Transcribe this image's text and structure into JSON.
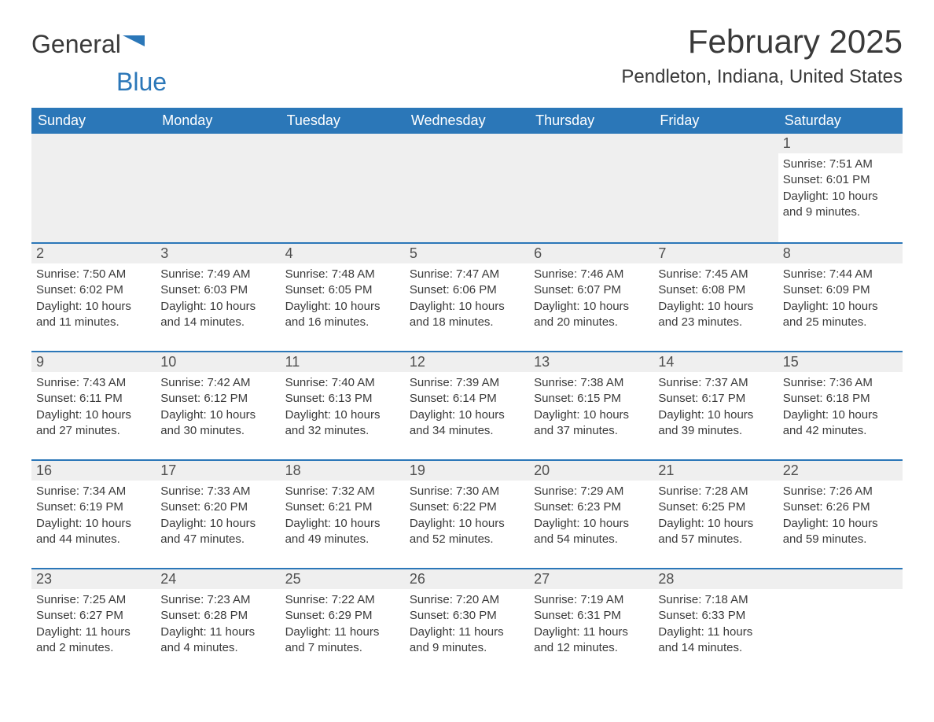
{
  "logo": {
    "text1": "General",
    "text2": "Blue"
  },
  "title": "February 2025",
  "location": "Pendleton, Indiana, United States",
  "colors": {
    "header_bg": "#2b77b8",
    "header_text": "#ffffff",
    "row_border": "#2b77b8",
    "daynum_bg": "#efefef",
    "body_text": "#3a3a3a"
  },
  "weekdays": [
    "Sunday",
    "Monday",
    "Tuesday",
    "Wednesday",
    "Thursday",
    "Friday",
    "Saturday"
  ],
  "weeks": [
    [
      null,
      null,
      null,
      null,
      null,
      null,
      {
        "n": "1",
        "sr": "Sunrise: 7:51 AM",
        "ss": "Sunset: 6:01 PM",
        "dl": "Daylight: 10 hours and 9 minutes."
      }
    ],
    [
      {
        "n": "2",
        "sr": "Sunrise: 7:50 AM",
        "ss": "Sunset: 6:02 PM",
        "dl": "Daylight: 10 hours and 11 minutes."
      },
      {
        "n": "3",
        "sr": "Sunrise: 7:49 AM",
        "ss": "Sunset: 6:03 PM",
        "dl": "Daylight: 10 hours and 14 minutes."
      },
      {
        "n": "4",
        "sr": "Sunrise: 7:48 AM",
        "ss": "Sunset: 6:05 PM",
        "dl": "Daylight: 10 hours and 16 minutes."
      },
      {
        "n": "5",
        "sr": "Sunrise: 7:47 AM",
        "ss": "Sunset: 6:06 PM",
        "dl": "Daylight: 10 hours and 18 minutes."
      },
      {
        "n": "6",
        "sr": "Sunrise: 7:46 AM",
        "ss": "Sunset: 6:07 PM",
        "dl": "Daylight: 10 hours and 20 minutes."
      },
      {
        "n": "7",
        "sr": "Sunrise: 7:45 AM",
        "ss": "Sunset: 6:08 PM",
        "dl": "Daylight: 10 hours and 23 minutes."
      },
      {
        "n": "8",
        "sr": "Sunrise: 7:44 AM",
        "ss": "Sunset: 6:09 PM",
        "dl": "Daylight: 10 hours and 25 minutes."
      }
    ],
    [
      {
        "n": "9",
        "sr": "Sunrise: 7:43 AM",
        "ss": "Sunset: 6:11 PM",
        "dl": "Daylight: 10 hours and 27 minutes."
      },
      {
        "n": "10",
        "sr": "Sunrise: 7:42 AM",
        "ss": "Sunset: 6:12 PM",
        "dl": "Daylight: 10 hours and 30 minutes."
      },
      {
        "n": "11",
        "sr": "Sunrise: 7:40 AM",
        "ss": "Sunset: 6:13 PM",
        "dl": "Daylight: 10 hours and 32 minutes."
      },
      {
        "n": "12",
        "sr": "Sunrise: 7:39 AM",
        "ss": "Sunset: 6:14 PM",
        "dl": "Daylight: 10 hours and 34 minutes."
      },
      {
        "n": "13",
        "sr": "Sunrise: 7:38 AM",
        "ss": "Sunset: 6:15 PM",
        "dl": "Daylight: 10 hours and 37 minutes."
      },
      {
        "n": "14",
        "sr": "Sunrise: 7:37 AM",
        "ss": "Sunset: 6:17 PM",
        "dl": "Daylight: 10 hours and 39 minutes."
      },
      {
        "n": "15",
        "sr": "Sunrise: 7:36 AM",
        "ss": "Sunset: 6:18 PM",
        "dl": "Daylight: 10 hours and 42 minutes."
      }
    ],
    [
      {
        "n": "16",
        "sr": "Sunrise: 7:34 AM",
        "ss": "Sunset: 6:19 PM",
        "dl": "Daylight: 10 hours and 44 minutes."
      },
      {
        "n": "17",
        "sr": "Sunrise: 7:33 AM",
        "ss": "Sunset: 6:20 PM",
        "dl": "Daylight: 10 hours and 47 minutes."
      },
      {
        "n": "18",
        "sr": "Sunrise: 7:32 AM",
        "ss": "Sunset: 6:21 PM",
        "dl": "Daylight: 10 hours and 49 minutes."
      },
      {
        "n": "19",
        "sr": "Sunrise: 7:30 AM",
        "ss": "Sunset: 6:22 PM",
        "dl": "Daylight: 10 hours and 52 minutes."
      },
      {
        "n": "20",
        "sr": "Sunrise: 7:29 AM",
        "ss": "Sunset: 6:23 PM",
        "dl": "Daylight: 10 hours and 54 minutes."
      },
      {
        "n": "21",
        "sr": "Sunrise: 7:28 AM",
        "ss": "Sunset: 6:25 PM",
        "dl": "Daylight: 10 hours and 57 minutes."
      },
      {
        "n": "22",
        "sr": "Sunrise: 7:26 AM",
        "ss": "Sunset: 6:26 PM",
        "dl": "Daylight: 10 hours and 59 minutes."
      }
    ],
    [
      {
        "n": "23",
        "sr": "Sunrise: 7:25 AM",
        "ss": "Sunset: 6:27 PM",
        "dl": "Daylight: 11 hours and 2 minutes."
      },
      {
        "n": "24",
        "sr": "Sunrise: 7:23 AM",
        "ss": "Sunset: 6:28 PM",
        "dl": "Daylight: 11 hours and 4 minutes."
      },
      {
        "n": "25",
        "sr": "Sunrise: 7:22 AM",
        "ss": "Sunset: 6:29 PM",
        "dl": "Daylight: 11 hours and 7 minutes."
      },
      {
        "n": "26",
        "sr": "Sunrise: 7:20 AM",
        "ss": "Sunset: 6:30 PM",
        "dl": "Daylight: 11 hours and 9 minutes."
      },
      {
        "n": "27",
        "sr": "Sunrise: 7:19 AM",
        "ss": "Sunset: 6:31 PM",
        "dl": "Daylight: 11 hours and 12 minutes."
      },
      {
        "n": "28",
        "sr": "Sunrise: 7:18 AM",
        "ss": "Sunset: 6:33 PM",
        "dl": "Daylight: 11 hours and 14 minutes."
      },
      null
    ]
  ]
}
